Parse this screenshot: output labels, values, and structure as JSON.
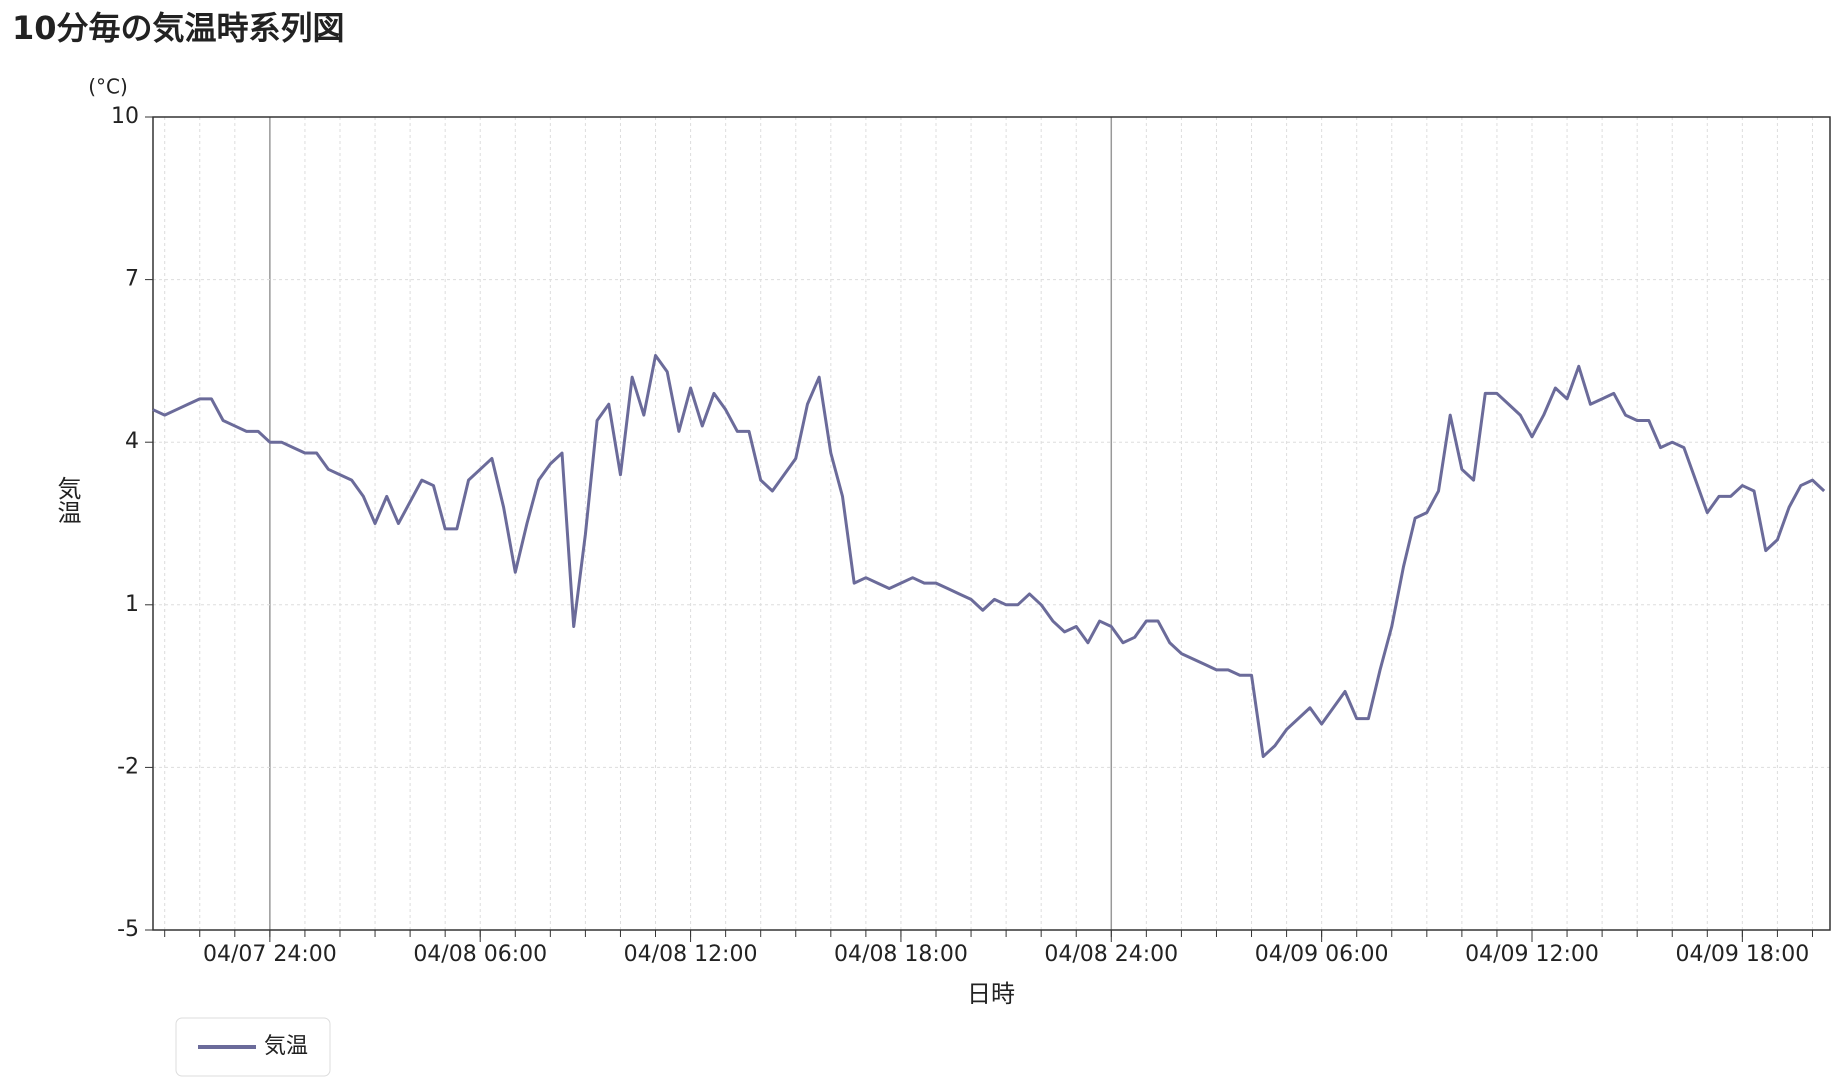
{
  "chart_data": {
    "type": "line",
    "title": "10分毎の気温時系列図",
    "y_unit": "(°C)",
    "y_label": "気温",
    "x_label": "日時",
    "x": [
      "04/07 20:40",
      "04/07 21:00",
      "04/07 21:20",
      "04/07 21:40",
      "04/07 22:00",
      "04/07 22:20",
      "04/07 22:40",
      "04/07 23:00",
      "04/07 23:20",
      "04/07 23:40",
      "04/08 00:00",
      "04/08 00:20",
      "04/08 00:40",
      "04/08 01:00",
      "04/08 01:20",
      "04/08 01:40",
      "04/08 02:00",
      "04/08 02:20",
      "04/08 02:40",
      "04/08 03:00",
      "04/08 03:20",
      "04/08 03:40",
      "04/08 04:00",
      "04/08 04:20",
      "04/08 04:40",
      "04/08 05:00",
      "04/08 05:20",
      "04/08 05:40",
      "04/08 06:00",
      "04/08 06:20",
      "04/08 06:40",
      "04/08 07:00",
      "04/08 07:20",
      "04/08 07:40",
      "04/08 08:00",
      "04/08 08:20",
      "04/08 08:40",
      "04/08 09:00",
      "04/08 09:20",
      "04/08 09:40",
      "04/08 10:00",
      "04/08 10:20",
      "04/08 10:40",
      "04/08 11:00",
      "04/08 11:20",
      "04/08 11:40",
      "04/08 12:00",
      "04/08 12:20",
      "04/08 12:40",
      "04/08 13:00",
      "04/08 13:20",
      "04/08 13:40",
      "04/08 14:00",
      "04/08 14:20",
      "04/08 14:40",
      "04/08 15:00",
      "04/08 15:20",
      "04/08 15:40",
      "04/08 16:00",
      "04/08 16:20",
      "04/08 16:40",
      "04/08 17:00",
      "04/08 17:20",
      "04/08 17:40",
      "04/08 18:00",
      "04/08 18:20",
      "04/08 18:40",
      "04/08 19:00",
      "04/08 19:20",
      "04/08 19:40",
      "04/08 20:00",
      "04/08 20:20",
      "04/08 20:40",
      "04/08 21:00",
      "04/08 21:20",
      "04/08 21:40",
      "04/08 22:00",
      "04/08 22:20",
      "04/08 22:40",
      "04/08 23:00",
      "04/08 23:20",
      "04/08 23:40",
      "04/09 00:00",
      "04/09 00:20",
      "04/09 00:40",
      "04/09 01:00",
      "04/09 01:20",
      "04/09 01:40",
      "04/09 02:00",
      "04/09 02:20",
      "04/09 02:40",
      "04/09 03:00",
      "04/09 03:20",
      "04/09 03:40",
      "04/09 04:00",
      "04/09 04:20",
      "04/09 04:40",
      "04/09 05:00",
      "04/09 05:20",
      "04/09 05:40",
      "04/09 06:00",
      "04/09 06:20",
      "04/09 06:40",
      "04/09 07:00",
      "04/09 07:20",
      "04/09 07:40",
      "04/09 08:00",
      "04/09 08:20",
      "04/09 08:40",
      "04/09 09:00",
      "04/09 09:20",
      "04/09 09:40",
      "04/09 10:00",
      "04/09 10:20",
      "04/09 10:40",
      "04/09 11:00",
      "04/09 11:20",
      "04/09 11:40",
      "04/09 12:00",
      "04/09 12:20",
      "04/09 12:40",
      "04/09 13:00",
      "04/09 13:20",
      "04/09 13:40",
      "04/09 14:00",
      "04/09 14:20",
      "04/09 14:40",
      "04/09 15:00",
      "04/09 15:20",
      "04/09 15:40",
      "04/09 16:00",
      "04/09 16:20",
      "04/09 16:40",
      "04/09 17:00",
      "04/09 17:20",
      "04/09 17:40",
      "04/09 18:00",
      "04/09 18:20",
      "04/09 18:40",
      "04/09 19:00",
      "04/09 19:20",
      "04/09 19:40",
      "04/09 20:00",
      "04/09 20:20"
    ],
    "series": [
      {
        "name": "気温",
        "color": "#6b6b9a",
        "values": [
          4.6,
          4.5,
          4.6,
          4.7,
          4.8,
          4.8,
          4.4,
          4.3,
          4.2,
          4.2,
          4.0,
          4.0,
          3.9,
          3.8,
          3.8,
          3.5,
          3.4,
          3.3,
          3.0,
          2.5,
          3.0,
          2.5,
          2.9,
          3.3,
          3.2,
          2.4,
          2.4,
          3.3,
          3.5,
          3.7,
          2.8,
          1.6,
          2.5,
          3.3,
          3.6,
          3.8,
          0.6,
          2.3,
          4.4,
          4.7,
          3.4,
          5.2,
          4.5,
          5.6,
          5.3,
          4.2,
          5.0,
          4.3,
          4.9,
          4.6,
          4.2,
          4.2,
          3.3,
          3.1,
          3.4,
          3.7,
          4.7,
          5.2,
          3.8,
          3.0,
          1.4,
          1.5,
          1.4,
          1.3,
          1.4,
          1.5,
          1.4,
          1.4,
          1.3,
          1.2,
          1.1,
          0.9,
          1.1,
          1.0,
          1.0,
          1.2,
          1.0,
          0.7,
          0.5,
          0.6,
          0.3,
          0.7,
          0.6,
          0.3,
          0.4,
          0.7,
          0.7,
          0.3,
          0.1,
          0.0,
          -0.1,
          -0.2,
          -0.2,
          -0.3,
          -0.3,
          -1.8,
          -1.6,
          -1.3,
          -1.1,
          -0.9,
          -1.2,
          -0.9,
          -0.6,
          -1.1,
          -1.1,
          -0.2,
          0.6,
          1.7,
          2.6,
          2.7,
          3.1,
          4.5,
          3.5,
          3.3,
          4.9,
          4.9,
          4.7,
          4.5,
          4.1,
          4.5,
          5.0,
          4.8,
          5.4,
          4.7,
          4.8,
          4.9,
          4.5,
          4.4,
          4.4,
          3.9,
          4.0,
          3.9,
          3.3,
          2.7,
          3.0,
          3.0,
          3.2,
          3.1,
          2.0,
          2.2,
          2.8,
          3.2,
          3.3,
          3.1
        ]
      }
    ],
    "xlim": [
      "04/07 20:40",
      "04/09 20:30"
    ],
    "xticks": [
      {
        "value": "04/08 00:00",
        "label": "04/07 24:00"
      },
      "04/08 06:00",
      "04/08 12:00",
      "04/08 18:00",
      {
        "value": "04/09 00:00",
        "label": "04/08 24:00"
      },
      "04/09 06:00",
      "04/09 12:00",
      "04/09 18:00"
    ],
    "ylim": [
      -5,
      10
    ],
    "yticks": [
      -5,
      -2,
      1,
      4,
      7,
      10
    ],
    "grid": true
  }
}
